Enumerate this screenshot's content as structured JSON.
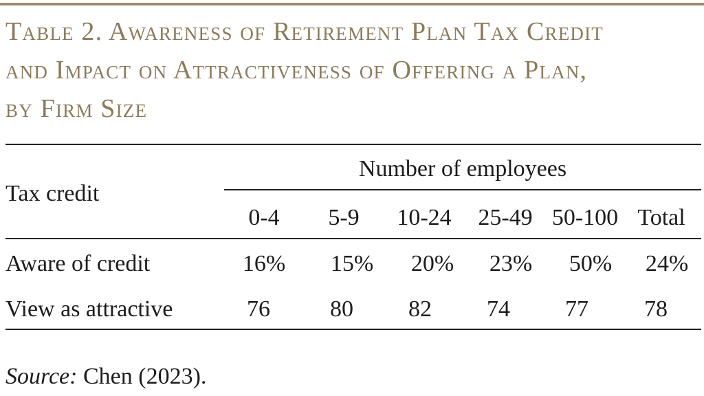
{
  "title_lines": [
    "Table 2. Awareness of Retirement Plan Tax Credit",
    "and Impact on Attractiveness of Offering a Plan,",
    "by Firm Size"
  ],
  "table": {
    "row_header": "Tax credit",
    "column_group": "Number of employees",
    "columns": [
      "0-4",
      "5-9",
      "10-24",
      "25-49",
      "50-100",
      "Total"
    ],
    "rows": [
      {
        "label": "Aware of credit",
        "values": [
          "16%",
          "15%",
          "20%",
          "23%",
          "50%",
          "24%"
        ]
      },
      {
        "label": "View as attractive",
        "values": [
          "76",
          "80",
          "82",
          "74",
          "77",
          "78"
        ]
      }
    ]
  },
  "source": {
    "label": "Source:",
    "text": " Chen (2023)."
  },
  "colors": {
    "title": "#8c7a5b",
    "rule_accent": "#9b8b6e",
    "text": "#1c1c1c"
  },
  "chart_data": {
    "type": "table",
    "title": "Table 2. Awareness of Retirement Plan Tax Credit and Impact on Attractiveness of Offering a Plan, by Firm Size",
    "columns": [
      "Tax credit",
      "0-4",
      "5-9",
      "10-24",
      "25-49",
      "50-100",
      "Total"
    ],
    "rows": [
      [
        "Aware of credit",
        "16%",
        "15%",
        "20%",
        "23%",
        "50%",
        "24%"
      ],
      [
        "View as attractive",
        "76",
        "80",
        "82",
        "74",
        "77",
        "78"
      ]
    ]
  }
}
